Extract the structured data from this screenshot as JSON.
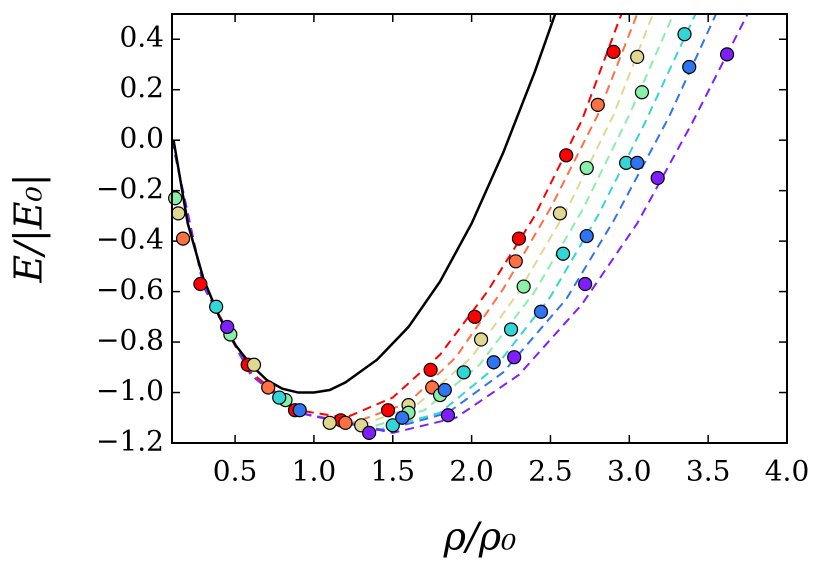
{
  "chart_data": {
    "type": "scatter",
    "x_label": "ρ/ρ₀",
    "y_label": "E/|E₀|",
    "xlim": [
      0.1,
      4.0
    ],
    "ylim": [
      -1.2,
      0.5
    ],
    "xticks": [
      0.5,
      {
        "value": 1.0,
        "label": "1.0"
      },
      1.5,
      {
        "value": 2.0,
        "label": "2.0"
      },
      2.5,
      {
        "value": 3.0,
        "label": "3.0"
      },
      3.5,
      {
        "value": 4.0,
        "label": "4.0"
      }
    ],
    "yticks": [
      {
        "value": -1.2,
        "label": "−1.2"
      },
      {
        "value": -1.0,
        "label": "−1.0"
      },
      {
        "value": -0.8,
        "label": "−0.8"
      },
      {
        "value": -0.6,
        "label": "−0.6"
      },
      {
        "value": -0.4,
        "label": "−0.4"
      },
      {
        "value": -0.2,
        "label": "−0.2"
      },
      {
        "value": 0.0,
        "label": "0.0"
      },
      0.2,
      0.4
    ],
    "curve": {
      "color": "#000000",
      "x": [
        0.11,
        0.2,
        0.3,
        0.4,
        0.5,
        0.6,
        0.7,
        0.8,
        0.9,
        1.0,
        1.1,
        1.2,
        1.4,
        1.6,
        1.8,
        2.0,
        2.2,
        2.4,
        2.53
      ],
      "values": [
        0.0,
        -0.33,
        -0.55,
        -0.7,
        -0.81,
        -0.89,
        -0.95,
        -0.985,
        -1.0,
        -1.0,
        -0.99,
        -0.96,
        -0.87,
        -0.74,
        -0.56,
        -0.33,
        -0.05,
        0.27,
        0.5
      ]
    },
    "fits": [
      {
        "color": "#ff0000",
        "x": [
          0.1,
          0.3,
          0.6,
          0.9,
          1.2,
          1.5,
          1.8,
          2.1,
          2.4,
          2.7,
          2.95
        ],
        "values": [
          0.0,
          -0.58,
          -0.92,
          -1.07,
          -1.1,
          -1.02,
          -0.85,
          -0.6,
          -0.3,
          0.08,
          0.5
        ]
      },
      {
        "color": "#ff7043",
        "x": [
          0.1,
          0.3,
          0.6,
          0.9,
          1.25,
          1.6,
          1.9,
          2.2,
          2.5,
          2.8,
          3.05
        ],
        "values": [
          0.0,
          -0.58,
          -0.93,
          -1.08,
          -1.12,
          -1.04,
          -0.86,
          -0.59,
          -0.27,
          0.1,
          0.5
        ]
      },
      {
        "color": "#e0d890",
        "x": [
          0.1,
          0.3,
          0.6,
          0.9,
          1.3,
          1.65,
          2.0,
          2.3,
          2.6,
          2.9,
          3.15
        ],
        "values": [
          0.0,
          -0.58,
          -0.93,
          -1.08,
          -1.13,
          -1.05,
          -0.86,
          -0.6,
          -0.28,
          0.1,
          0.5
        ]
      },
      {
        "color": "#88f0a8",
        "x": [
          0.1,
          0.3,
          0.6,
          0.9,
          1.35,
          1.7,
          2.05,
          2.4,
          2.7,
          3.0,
          3.28
        ],
        "values": [
          0.0,
          -0.58,
          -0.93,
          -1.08,
          -1.14,
          -1.07,
          -0.89,
          -0.6,
          -0.28,
          0.1,
          0.5
        ]
      },
      {
        "color": "#33d6d6",
        "x": [
          0.1,
          0.3,
          0.6,
          0.9,
          1.4,
          1.8,
          2.15,
          2.5,
          2.8,
          3.1,
          3.42
        ],
        "values": [
          0.0,
          -0.58,
          -0.93,
          -1.08,
          -1.15,
          -1.08,
          -0.9,
          -0.62,
          -0.3,
          0.07,
          0.5
        ]
      },
      {
        "color": "#2f74f0",
        "x": [
          0.1,
          0.3,
          0.6,
          0.9,
          1.45,
          1.85,
          2.2,
          2.6,
          2.9,
          3.25,
          3.55
        ],
        "values": [
          0.0,
          -0.58,
          -0.93,
          -1.08,
          -1.15,
          -1.08,
          -0.92,
          -0.63,
          -0.32,
          0.09,
          0.5
        ]
      },
      {
        "color": "#7f1fff",
        "x": [
          0.1,
          0.3,
          0.6,
          0.9,
          1.5,
          1.9,
          2.3,
          2.7,
          3.05,
          3.4,
          3.75
        ],
        "values": [
          0.0,
          -0.58,
          -0.93,
          -1.08,
          -1.16,
          -1.1,
          -0.93,
          -0.65,
          -0.33,
          0.07,
          0.5
        ]
      }
    ],
    "series": [
      {
        "color": "#ff0000",
        "x": [
          0.28,
          0.58,
          0.88,
          1.17,
          1.47,
          1.74,
          2.02,
          2.3,
          2.6,
          2.9
        ],
        "values": [
          -0.57,
          -0.89,
          -1.07,
          -1.11,
          -1.07,
          -0.91,
          -0.7,
          -0.39,
          -0.06,
          0.35
        ]
      },
      {
        "color": "#ff7043",
        "x": [
          0.17,
          0.71,
          1.2,
          1.75,
          2.28,
          2.8
        ],
        "values": [
          -0.39,
          -0.98,
          -1.12,
          -0.98,
          -0.48,
          0.14
        ]
      },
      {
        "color": "#e0d890",
        "x": [
          0.14,
          0.62,
          1.1,
          1.3,
          1.6,
          2.06,
          2.56,
          3.05
        ],
        "values": [
          -0.29,
          -0.89,
          -1.12,
          -1.13,
          -1.05,
          -0.79,
          -0.29,
          0.33
        ]
      },
      {
        "color": "#88f0a8",
        "x": [
          0.12,
          0.47,
          0.82,
          1.6,
          1.8,
          2.33,
          2.73,
          3.08
        ],
        "values": [
          -0.23,
          -0.77,
          -1.03,
          -1.08,
          -1.01,
          -0.58,
          -0.11,
          0.19
        ]
      },
      {
        "color": "#33d6d6",
        "x": [
          0.38,
          0.78,
          1.5,
          1.95,
          2.25,
          2.58,
          2.98,
          3.35
        ],
        "values": [
          -0.66,
          -1.02,
          -1.13,
          -0.92,
          -0.75,
          -0.45,
          -0.09,
          0.42
        ]
      },
      {
        "color": "#2f74f0",
        "x": [
          0.91,
          1.56,
          1.83,
          2.14,
          2.44,
          2.73,
          3.05,
          3.38
        ],
        "values": [
          -1.07,
          -1.1,
          -0.99,
          -0.88,
          -0.68,
          -0.38,
          -0.09,
          0.29
        ]
      },
      {
        "color": "#7f1fff",
        "x": [
          0.45,
          1.35,
          1.85,
          2.27,
          2.72,
          3.18,
          3.62
        ],
        "values": [
          -0.74,
          -1.16,
          -1.09,
          -0.86,
          -0.57,
          -0.15,
          0.34
        ]
      }
    ]
  }
}
